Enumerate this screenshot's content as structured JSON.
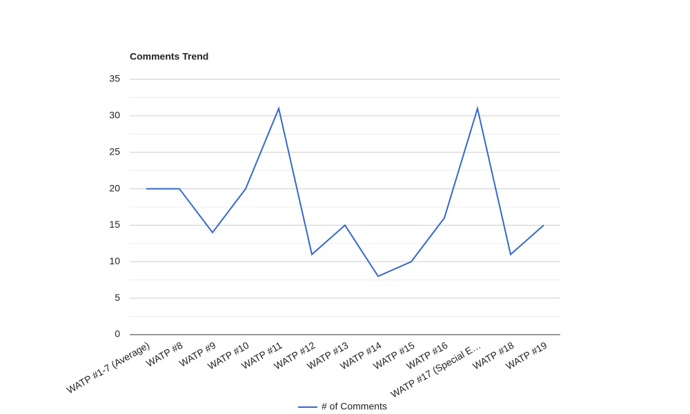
{
  "chart_data": {
    "type": "line",
    "title": "Comments Trend",
    "categories": [
      "WATP #1-7 (Average)",
      "WATP #8",
      "WATP #9",
      "WATP #10",
      "WATP #11",
      "WATP #12",
      "WATP #13",
      "WATP #14",
      "WATP #15",
      "WATP #16",
      "WATP #17 (Special E…",
      "WATP #18",
      "WATP #19"
    ],
    "series": [
      {
        "name": "# of Comments",
        "color": "#3366cc",
        "values": [
          20,
          20,
          14,
          20,
          31,
          11,
          15,
          8,
          10,
          16,
          31,
          11,
          15
        ]
      }
    ],
    "ylim": [
      0,
      35
    ],
    "yticks": [
      0,
      5,
      10,
      15,
      20,
      25,
      30,
      35
    ],
    "grid": true,
    "legend": "bottom"
  }
}
